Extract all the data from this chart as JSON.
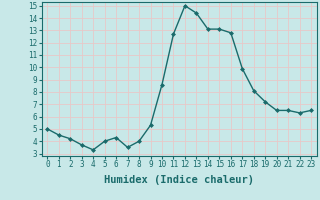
{
  "x": [
    0,
    1,
    2,
    3,
    4,
    5,
    6,
    7,
    8,
    9,
    10,
    11,
    12,
    13,
    14,
    15,
    16,
    17,
    18,
    19,
    20,
    21,
    22,
    23
  ],
  "y": [
    5.0,
    4.5,
    4.2,
    3.7,
    3.3,
    4.0,
    4.3,
    3.5,
    4.0,
    5.3,
    8.6,
    12.7,
    15.0,
    14.4,
    13.1,
    13.1,
    12.8,
    9.9,
    8.1,
    7.2,
    6.5,
    6.5,
    6.3,
    6.5
  ],
  "line_color": "#1a6b6b",
  "marker": "D",
  "marker_size": 2.0,
  "bg_color": "#c8e8e8",
  "grid_color": "#e8c8c8",
  "xlabel": "Humidex (Indice chaleur)",
  "xlim": [
    -0.5,
    23.5
  ],
  "ylim": [
    2.8,
    15.3
  ],
  "yticks": [
    3,
    4,
    5,
    6,
    7,
    8,
    9,
    10,
    11,
    12,
    13,
    14,
    15
  ],
  "xticks": [
    0,
    1,
    2,
    3,
    4,
    5,
    6,
    7,
    8,
    9,
    10,
    11,
    12,
    13,
    14,
    15,
    16,
    17,
    18,
    19,
    20,
    21,
    22,
    23
  ],
  "tick_label_fontsize": 5.5,
  "xlabel_fontsize": 7.5,
  "line_width": 1.0
}
